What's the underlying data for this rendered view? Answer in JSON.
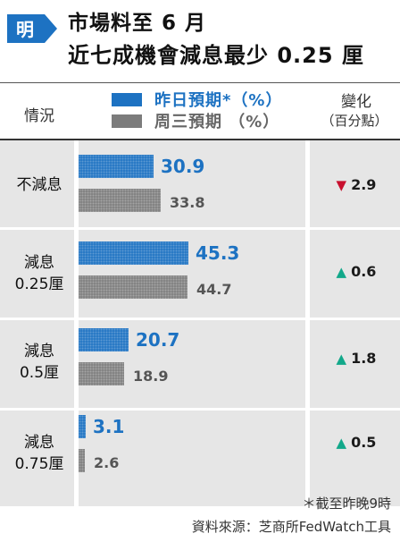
{
  "header": {
    "logo_char": "明",
    "title_line1": "市場料至 6 月",
    "title_line2": "近七成機會減息最少 0.25 厘"
  },
  "columns": {
    "situation": "情況",
    "change_line1": "變化",
    "change_line2": "（百分點）"
  },
  "legend": {
    "yesterday": "昨日預期*（%）",
    "wednesday": "周三預期 （%）"
  },
  "rows": [
    {
      "label": "不減息",
      "yesterday": "30.9",
      "wednesday": "33.8",
      "change": "2.9",
      "direction": "down"
    },
    {
      "label": "減息\n0.25厘",
      "yesterday": "45.3",
      "wednesday": "44.7",
      "change": "0.6",
      "direction": "up"
    },
    {
      "label": "減息\n0.5厘",
      "yesterday": "20.7",
      "wednesday": "18.9",
      "change": "1.8",
      "direction": "up"
    },
    {
      "label": "減息\n0.75厘",
      "yesterday": "3.1",
      "wednesday": "2.6",
      "change": "0.5",
      "direction": "up"
    }
  ],
  "chart_data": {
    "type": "bar",
    "categories": [
      "不減息",
      "減息0.25厘",
      "減息0.5厘",
      "減息0.75厘"
    ],
    "series": [
      {
        "name": "昨日預期*（%）",
        "values": [
          30.9,
          45.3,
          20.7,
          3.1
        ]
      },
      {
        "name": "周三預期 （%）",
        "values": [
          33.8,
          44.7,
          18.9,
          2.6
        ]
      }
    ],
    "change_points": [
      -2.9,
      0.6,
      1.8,
      0.5
    ],
    "orientation": "horizontal",
    "colors": {
      "yesterday": "#1d72c2",
      "wednesday": "#7c7c7c",
      "up": "#12a88a",
      "down": "#c8102e"
    },
    "grid": false
  },
  "footer": {
    "note": "＊截至昨晚9時",
    "source": "資料來源：芝商所FedWatch工具"
  }
}
